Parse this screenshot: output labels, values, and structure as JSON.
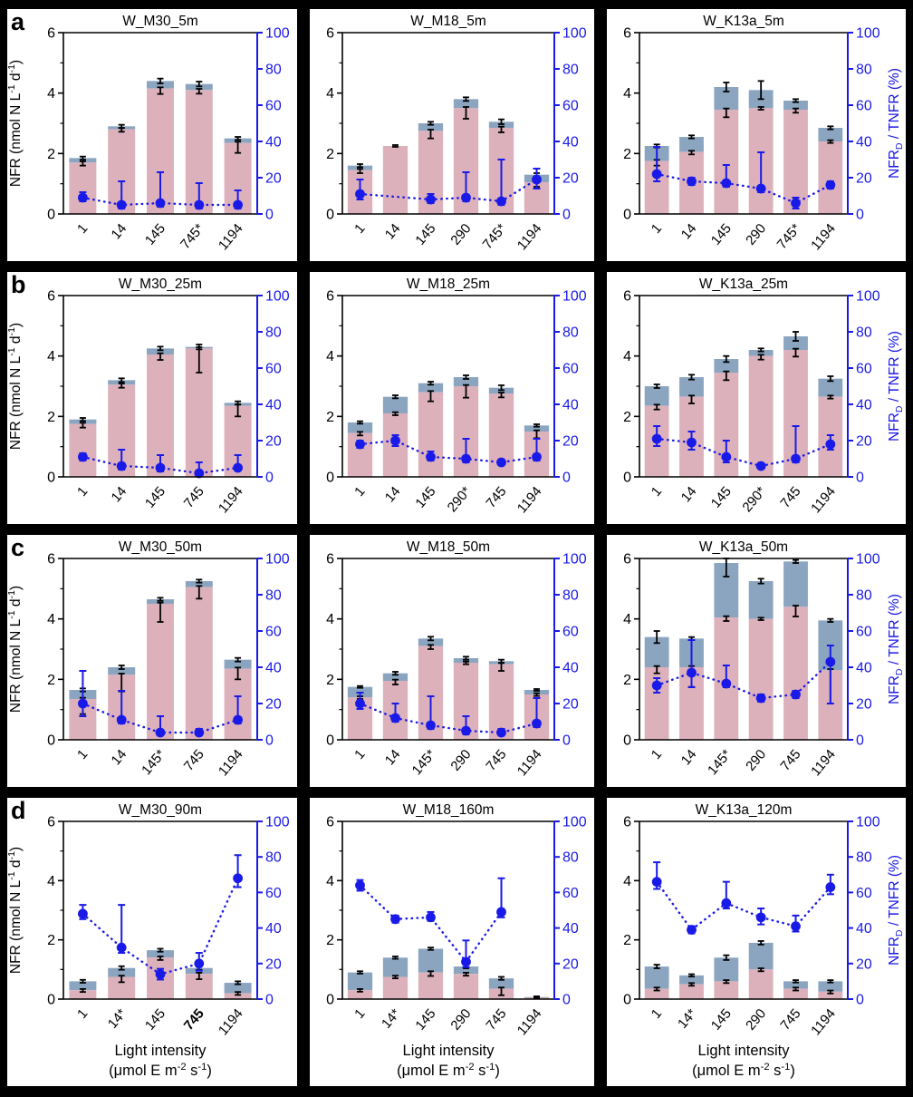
{
  "figure": {
    "row_letters": [
      "a",
      "b",
      "c",
      "d"
    ],
    "colors": {
      "background": "#000000",
      "panel_background": "#ffffff",
      "pink_bar": "#DDB1BC",
      "gray_bar": "#8BA5C1",
      "blue": "#1A1AE8",
      "black": "#000000"
    },
    "left_axis": {
      "label_segments": [
        {
          "t": "NFR (nmol N L"
        },
        {
          "t": "-1",
          "sup": true
        },
        {
          "t": " d"
        },
        {
          "t": "-1",
          "sup": true
        },
        {
          "t": ")"
        }
      ],
      "range": [
        0,
        6
      ],
      "ticks": [
        0,
        2,
        4,
        6
      ],
      "minor_ticks": [
        1,
        3,
        5
      ]
    },
    "right_axis": {
      "label_segments": [
        {
          "t": "NFR"
        },
        {
          "t": "D",
          "sub": true
        },
        {
          "t": " / TNFR (%)"
        }
      ],
      "range": [
        0,
        100
      ],
      "ticks": [
        0,
        20,
        40,
        60,
        80,
        100
      ]
    },
    "x_axis": {
      "label_line1": "Light intensity",
      "label_line2_segments": [
        {
          "t": "(μmol E m"
        },
        {
          "t": "-2",
          "sup": true
        },
        {
          "t": " s"
        },
        {
          "t": "-1",
          "sup": true
        },
        {
          "t": ")"
        }
      ]
    }
  },
  "chart_data": [
    {
      "type": "bar",
      "row": 0,
      "col": 0,
      "title": "W_M30_5m",
      "categories": [
        "1",
        "14",
        "145",
        "745*",
        "1194"
      ],
      "series": [
        {
          "name": "NFR_pink",
          "values": [
            1.7,
            2.8,
            4.15,
            4.1,
            2.35
          ]
        },
        {
          "name": "NFR_total",
          "values": [
            1.85,
            2.9,
            4.4,
            4.3,
            2.5
          ]
        },
        {
          "name": "NFRD_TNFR_pct",
          "values": [
            9,
            5,
            6,
            5,
            5
          ]
        }
      ],
      "total_err": [
        0.05,
        0.05,
        0.08,
        0.08,
        0.05
      ],
      "pink_err": [
        0.1,
        0.08,
        0.18,
        0.12,
        0.33
      ],
      "pct_err_up": [
        3,
        13,
        17,
        12,
        8
      ],
      "pct_err_dn": [
        2,
        2,
        2,
        2,
        2
      ]
    },
    {
      "type": "bar",
      "row": 0,
      "col": 1,
      "title": "W_M18_5m",
      "categories": [
        "1",
        "14",
        "145",
        "290",
        "745*",
        "1194"
      ],
      "series": [
        {
          "name": "NFR_pink",
          "values": [
            1.45,
            2.25,
            2.75,
            3.5,
            2.85,
            1.05
          ]
        },
        {
          "name": "NFR_total",
          "values": [
            1.6,
            2.25,
            3.0,
            3.8,
            3.05,
            1.3
          ]
        },
        {
          "name": "NFRD_TNFR_pct",
          "values": [
            11,
            null,
            8,
            9,
            7,
            19
          ]
        }
      ],
      "total_err": [
        0.05,
        0.03,
        0.05,
        0.06,
        0.08,
        0.05
      ],
      "pink_err": [
        0.1,
        0.03,
        0.25,
        0.35,
        0.15,
        0.15
      ],
      "pct_err_up": [
        8,
        null,
        3,
        14,
        23,
        6
      ],
      "pct_err_dn": [
        3,
        null,
        2,
        2,
        2,
        5
      ]
    },
    {
      "type": "bar",
      "row": 0,
      "col": 2,
      "title": "W_K13a_5m",
      "categories": [
        "1",
        "14",
        "145",
        "290",
        "745*",
        "1194"
      ],
      "series": [
        {
          "name": "NFR_pink",
          "values": [
            1.75,
            2.05,
            3.45,
            3.5,
            3.45,
            2.4
          ]
        },
        {
          "name": "NFR_total",
          "values": [
            2.25,
            2.55,
            4.2,
            4.1,
            3.75,
            2.85
          ]
        },
        {
          "name": "NFRD_TNFR_pct",
          "values": [
            22,
            18,
            17,
            14,
            6,
            16
          ]
        }
      ],
      "total_err": [
        0.05,
        0.05,
        0.15,
        0.3,
        0.05,
        0.05
      ],
      "pink_err": [
        0.15,
        0.08,
        0.25,
        0.05,
        0.1,
        0.05
      ],
      "pct_err_up": [
        15,
        2,
        10,
        20,
        3,
        2
      ],
      "pct_err_dn": [
        4,
        2,
        2,
        2,
        3,
        2
      ]
    },
    {
      "type": "bar",
      "row": 1,
      "col": 0,
      "title": "W_M30_25m",
      "categories": [
        "1",
        "14",
        "145",
        "745",
        "1194"
      ],
      "series": [
        {
          "name": "NFR_pink",
          "values": [
            1.75,
            3.05,
            4.05,
            4.25,
            2.35
          ]
        },
        {
          "name": "NFR_total",
          "values": [
            1.9,
            3.2,
            4.25,
            4.3,
            2.45
          ]
        },
        {
          "name": "NFRD_TNFR_pct",
          "values": [
            11,
            6,
            5,
            2,
            5
          ]
        }
      ],
      "total_err": [
        0.05,
        0.06,
        0.06,
        0.08,
        0.05
      ],
      "pink_err": [
        0.12,
        0.1,
        0.18,
        0.8,
        0.35
      ],
      "pct_err_up": [
        2,
        9,
        7,
        6,
        7
      ],
      "pct_err_dn": [
        2,
        2,
        2,
        1,
        1
      ]
    },
    {
      "type": "bar",
      "row": 1,
      "col": 1,
      "title": "W_M18_25m",
      "categories": [
        "1",
        "14",
        "145",
        "290*",
        "745",
        "1194"
      ],
      "series": [
        {
          "name": "NFR_pink",
          "values": [
            1.45,
            2.1,
            2.8,
            3.0,
            2.75,
            1.5
          ]
        },
        {
          "name": "NFR_total",
          "values": [
            1.8,
            2.65,
            3.1,
            3.3,
            2.95,
            1.7
          ]
        },
        {
          "name": "NFRD_TNFR_pct",
          "values": [
            18,
            20,
            11,
            10,
            8,
            11
          ]
        }
      ],
      "total_err": [
        0.04,
        0.05,
        0.05,
        0.06,
        0.08,
        0.04
      ],
      "pink_err": [
        0.08,
        0.06,
        0.3,
        0.38,
        0.12,
        0.22
      ],
      "pct_err_up": [
        2,
        3,
        3,
        11,
        1,
        10
      ],
      "pct_err_dn": [
        2,
        3,
        2,
        2,
        1,
        2
      ]
    },
    {
      "type": "bar",
      "row": 1,
      "col": 2,
      "title": "W_K13a_25m",
      "categories": [
        "1",
        "14",
        "145",
        "290*",
        "745",
        "1194"
      ],
      "series": [
        {
          "name": "NFR_pink",
          "values": [
            2.35,
            2.65,
            3.45,
            4.0,
            4.2,
            2.65
          ]
        },
        {
          "name": "NFR_total",
          "values": [
            3.0,
            3.3,
            3.9,
            4.2,
            4.65,
            3.25
          ]
        },
        {
          "name": "NFRD_TNFR_pct",
          "values": [
            21,
            19,
            11,
            6,
            10,
            18
          ]
        }
      ],
      "total_err": [
        0.06,
        0.08,
        0.1,
        0.05,
        0.15,
        0.08
      ],
      "pink_err": [
        0.12,
        0.22,
        0.25,
        0.12,
        0.22,
        0.06
      ],
      "pct_err_up": [
        7,
        6,
        9,
        1,
        18,
        5
      ],
      "pct_err_dn": [
        4,
        4,
        3,
        1,
        2,
        3
      ]
    },
    {
      "type": "bar",
      "row": 2,
      "col": 0,
      "title": "W_M30_50m",
      "categories": [
        "1",
        "14",
        "145*",
        "745",
        "1194"
      ],
      "series": [
        {
          "name": "NFR_pink",
          "values": [
            1.35,
            2.15,
            4.5,
            5.05,
            2.35
          ]
        },
        {
          "name": "NFR_total",
          "values": [
            1.65,
            2.4,
            4.65,
            5.25,
            2.65
          ]
        },
        {
          "name": "NFRD_TNFR_pct",
          "values": [
            20,
            11,
            4,
            4,
            11
          ]
        }
      ],
      "total_err": [
        0.05,
        0.06,
        0.05,
        0.05,
        0.06
      ],
      "pink_err": [
        0.5,
        0.55,
        0.6,
        0.38,
        0.35
      ],
      "pct_err_up": [
        18,
        16,
        9,
        2,
        13
      ],
      "pct_err_dn": [
        7,
        2,
        1,
        1,
        2
      ]
    },
    {
      "type": "bar",
      "row": 2,
      "col": 1,
      "title": "W_M18_50m",
      "categories": [
        "1",
        "14",
        "145*",
        "290",
        "745",
        "1194"
      ],
      "series": [
        {
          "name": "NFR_pink",
          "values": [
            1.4,
            1.95,
            3.1,
            2.55,
            2.5,
            1.5
          ]
        },
        {
          "name": "NFR_total",
          "values": [
            1.75,
            2.2,
            3.35,
            2.7,
            2.6,
            1.65
          ]
        },
        {
          "name": "NFRD_TNFR_pct",
          "values": [
            20,
            12,
            8,
            5,
            4,
            9
          ]
        }
      ],
      "total_err": [
        0.03,
        0.05,
        0.06,
        0.05,
        0.05,
        0.03
      ],
      "pink_err": [
        0.05,
        0.12,
        0.1,
        0.05,
        0.22,
        0.05
      ],
      "pct_err_up": [
        6,
        8,
        16,
        8,
        2,
        14
      ],
      "pct_err_dn": [
        3,
        2,
        2,
        2,
        1,
        2
      ]
    },
    {
      "type": "bar",
      "row": 2,
      "col": 2,
      "title": "W_K13a_50m",
      "categories": [
        "1",
        "14",
        "145*",
        "290",
        "745",
        "1194"
      ],
      "series": [
        {
          "name": "NFR_pink",
          "values": [
            2.4,
            2.4,
            4.05,
            4.0,
            4.4,
            2.3
          ]
        },
        {
          "name": "NFR_total",
          "values": [
            3.4,
            3.35,
            5.85,
            5.25,
            5.9,
            3.95
          ]
        },
        {
          "name": "NFRD_TNFR_pct",
          "values": [
            30,
            37,
            31,
            23,
            25,
            43
          ]
        }
      ],
      "total_err": [
        0.2,
        0.05,
        0.45,
        0.08,
        0.05,
        0.05
      ],
      "pink_err": [
        0.2,
        0.65,
        0.12,
        0.04,
        0.32,
        1.1
      ],
      "pct_err_up": [
        4,
        18,
        10,
        2,
        2,
        9
      ],
      "pct_err_dn": [
        4,
        8,
        2,
        2,
        2,
        23
      ]
    },
    {
      "type": "bar",
      "row": 3,
      "col": 0,
      "title": "W_M30_90m",
      "categories": [
        "1",
        "14*",
        "145",
        "745",
        "1194"
      ],
      "bold_tick": 3,
      "series": [
        {
          "name": "NFR_pink",
          "values": [
            0.3,
            0.75,
            1.4,
            0.85,
            0.2
          ]
        },
        {
          "name": "NFR_total",
          "values": [
            0.6,
            1.05,
            1.65,
            1.05,
            0.55
          ]
        },
        {
          "name": "NFRD_TNFR_pct",
          "values": [
            48,
            29,
            14,
            20,
            68
          ]
        }
      ],
      "total_err": [
        0.05,
        0.06,
        0.05,
        0.06,
        0.05
      ],
      "pink_err": [
        0.06,
        0.18,
        0.08,
        0.18,
        0.06
      ],
      "pct_err_up": [
        5,
        24,
        3,
        6,
        13
      ],
      "pct_err_dn": [
        3,
        3,
        3,
        4,
        5
      ]
    },
    {
      "type": "bar",
      "row": 3,
      "col": 1,
      "title": "W_M18_160m",
      "categories": [
        "1",
        "14*",
        "145",
        "290",
        "745",
        "1194"
      ],
      "series": [
        {
          "name": "NFR_pink",
          "values": [
            0.3,
            0.75,
            0.9,
            0.85,
            0.35,
            0.05
          ]
        },
        {
          "name": "NFR_total",
          "values": [
            0.9,
            1.4,
            1.7,
            1.1,
            0.7,
            0.07
          ]
        },
        {
          "name": "NFRD_TNFR_pct",
          "values": [
            64,
            45,
            46,
            21,
            49,
            null
          ]
        }
      ],
      "total_err": [
        0.04,
        0.04,
        0.04,
        0.06,
        0.05,
        0.02
      ],
      "pink_err": [
        0.05,
        0.05,
        0.12,
        0.06,
        0.22,
        0.02
      ],
      "pct_err_up": [
        3,
        2,
        3,
        12,
        19,
        null
      ],
      "pct_err_dn": [
        3,
        2,
        2,
        3,
        3,
        null
      ]
    },
    {
      "type": "bar",
      "row": 3,
      "col": 2,
      "title": "W_K13a_120m",
      "categories": [
        "1",
        "14*",
        "145",
        "290",
        "745",
        "1194"
      ],
      "series": [
        {
          "name": "NFR_pink",
          "values": [
            0.35,
            0.5,
            0.6,
            1.0,
            0.35,
            0.25
          ]
        },
        {
          "name": "NFR_total",
          "values": [
            1.1,
            0.8,
            1.4,
            1.9,
            0.6,
            0.6
          ]
        },
        {
          "name": "NFRD_TNFR_pct",
          "values": [
            66,
            39,
            54,
            46,
            41,
            63
          ]
        }
      ],
      "total_err": [
        0.06,
        0.04,
        0.08,
        0.06,
        0.04,
        0.04
      ],
      "pink_err": [
        0.06,
        0.05,
        0.06,
        0.06,
        0.06,
        0.06
      ],
      "pct_err_up": [
        11,
        2,
        12,
        5,
        6,
        7
      ],
      "pct_err_dn": [
        4,
        2,
        3,
        4,
        3,
        4
      ]
    }
  ]
}
